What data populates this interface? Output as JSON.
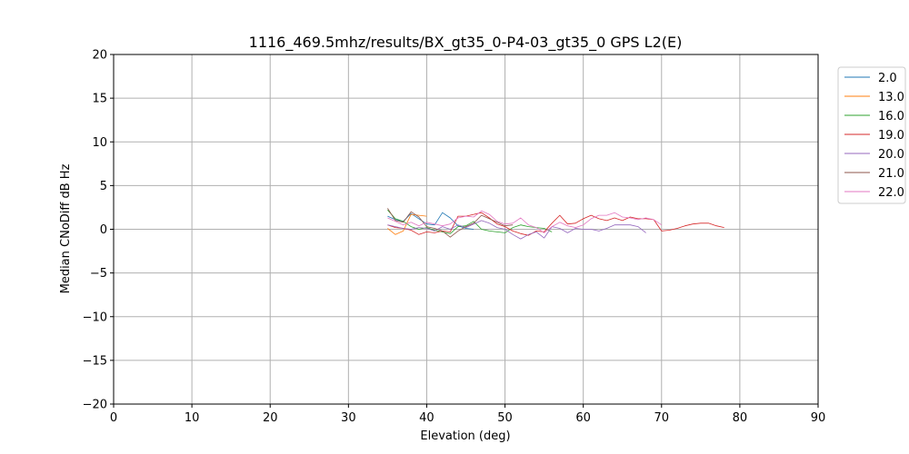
{
  "chart_data": {
    "type": "line",
    "title": "1116_469.5mhz/results/BX_gt35_0-P4-03_gt35_0 GPS L2(E)",
    "xlabel": "Elevation (deg)",
    "ylabel": "Median CNoDiff dB Hz",
    "xlim": [
      0,
      90
    ],
    "ylim": [
      -20,
      20
    ],
    "xticks": [
      0,
      10,
      20,
      30,
      40,
      50,
      60,
      70,
      80,
      90
    ],
    "yticks": [
      -20,
      -15,
      -10,
      -5,
      0,
      5,
      10,
      15,
      20
    ],
    "grid": true,
    "legend_position": "top-right outside",
    "series": [
      {
        "name": "2.0",
        "color": "#1f77b4",
        "x": [
          35,
          36,
          37,
          38,
          39,
          40,
          41,
          42,
          43,
          44,
          45,
          46
        ],
        "y": [
          1.5,
          1.1,
          0.9,
          1.8,
          1.2,
          0.6,
          0.5,
          1.9,
          1.3,
          0.4,
          0.1,
          0.0
        ]
      },
      {
        "name": "13.0",
        "color": "#ff7f0e",
        "x": [
          35,
          36,
          37,
          38,
          39,
          40
        ],
        "y": [
          0.1,
          -0.6,
          -0.2,
          1.7,
          1.6,
          1.5
        ]
      },
      {
        "name": "16.0",
        "color": "#2ca02c",
        "x": [
          35,
          36,
          37,
          38,
          39,
          40,
          41,
          42,
          43,
          44,
          45,
          46,
          47,
          48,
          49,
          50,
          51,
          52,
          53,
          54,
          55,
          56
        ],
        "y": [
          2.2,
          1.2,
          0.9,
          0.3,
          0.0,
          0.2,
          -0.1,
          -0.3,
          -0.5,
          0.3,
          0.4,
          0.9,
          0.0,
          -0.2,
          -0.3,
          -0.4,
          0.2,
          0.5,
          0.3,
          0.2,
          0.1,
          -0.3
        ]
      },
      {
        "name": "19.0",
        "color": "#d62728",
        "x": [
          35,
          36,
          37,
          38,
          39,
          40,
          41,
          42,
          43,
          44,
          45,
          46,
          47,
          48,
          49,
          50,
          51,
          52,
          53,
          54,
          55,
          56,
          57,
          58,
          59,
          60,
          61,
          62,
          63,
          64,
          65,
          66,
          67,
          68,
          69,
          70,
          71,
          72,
          73,
          74,
          75,
          76,
          77,
          78
        ],
        "y": [
          0.5,
          0.2,
          0.1,
          -0.1,
          -0.6,
          -0.3,
          -0.4,
          -0.2,
          -0.3,
          1.5,
          1.5,
          1.7,
          1.9,
          1.3,
          0.6,
          0.3,
          -0.2,
          -0.5,
          -0.7,
          -0.2,
          -0.3,
          0.7,
          1.6,
          0.6,
          0.7,
          1.2,
          1.6,
          1.2,
          1.0,
          1.3,
          1.0,
          1.4,
          1.2,
          1.2,
          1.1,
          -0.2,
          -0.1,
          0.1,
          0.4,
          0.6,
          0.7,
          0.7,
          0.4,
          0.2
        ]
      },
      {
        "name": "20.0",
        "color": "#9467bd",
        "x": [
          35,
          36,
          37,
          38,
          39,
          40,
          41,
          42,
          43,
          44,
          45,
          46,
          47,
          48,
          49,
          50,
          51,
          52,
          53,
          54,
          55,
          56,
          57,
          58,
          59,
          60,
          61,
          62,
          63,
          64,
          65,
          66,
          67,
          68
        ],
        "y": [
          0.5,
          0.3,
          0.1,
          0.0,
          0.2,
          0.1,
          -0.2,
          0.3,
          0.0,
          0.5,
          0.2,
          0.6,
          1.0,
          0.7,
          0.2,
          0.0,
          -0.6,
          -1.1,
          -0.6,
          -0.3,
          -1.0,
          0.3,
          0.1,
          -0.4,
          0.1,
          0.0,
          0.0,
          -0.2,
          0.1,
          0.5,
          0.5,
          0.5,
          0.3,
          -0.4
        ]
      },
      {
        "name": "21.0",
        "color": "#8c564b",
        "x": [
          35,
          36,
          37,
          38,
          39,
          40,
          41,
          42,
          43,
          44,
          45,
          46,
          47,
          48,
          49,
          50,
          51
        ],
        "y": [
          2.4,
          1.0,
          0.8,
          2.0,
          1.4,
          0.3,
          0.1,
          -0.2,
          -0.9,
          -0.2,
          0.3,
          0.7,
          1.6,
          1.2,
          0.8,
          0.4,
          0.5
        ]
      },
      {
        "name": "22.0",
        "color": "#e377c2",
        "x": [
          35,
          36,
          37,
          38,
          39,
          40,
          41,
          42,
          43,
          44,
          45,
          46,
          47,
          48,
          49,
          50,
          51,
          52,
          53,
          54,
          55,
          56,
          57,
          58,
          59,
          60,
          61,
          62,
          63,
          64,
          65,
          66,
          67,
          68,
          69,
          70
        ],
        "y": [
          1.3,
          0.9,
          0.5,
          0.8,
          0.4,
          0.8,
          0.6,
          0.4,
          0.6,
          1.3,
          1.5,
          1.4,
          2.1,
          1.7,
          0.9,
          0.6,
          0.7,
          1.3,
          0.5,
          0.2,
          -0.4,
          0.3,
          0.8,
          0.4,
          0.2,
          0.5,
          1.2,
          1.6,
          1.6,
          1.9,
          1.4,
          1.3,
          1.1,
          1.3,
          1.1,
          0.5
        ]
      }
    ]
  }
}
